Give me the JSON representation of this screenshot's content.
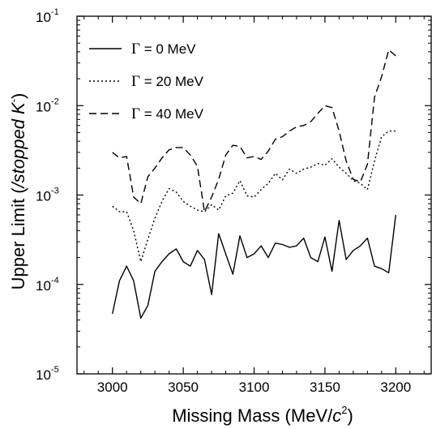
{
  "chart_data": {
    "type": "line",
    "title": "",
    "xlabel": {
      "prefix": "Missing Mass (MeV/",
      "var": "c",
      "sup": "2",
      "suffix": ")"
    },
    "ylabel": {
      "prefix": "Upper Limit  (",
      "italic": "/stopped K",
      "sup": "-",
      "suffix": ")"
    },
    "xlim": [
      2975,
      3225
    ],
    "ylim": [
      1e-05,
      0.1
    ],
    "yscale": "log",
    "grid": false,
    "legend_position": "top-left",
    "x_ticks": [
      "3000",
      "3050",
      "3100",
      "3150",
      "3200"
    ],
    "y_ticks": [
      {
        "base": "10",
        "exp": "-5"
      },
      {
        "base": "10",
        "exp": "-4"
      },
      {
        "base": "10",
        "exp": "-3"
      },
      {
        "base": "10",
        "exp": "-2"
      },
      {
        "base": "10",
        "exp": "-1"
      }
    ],
    "series": [
      {
        "name": {
          "symbol": "Γ",
          "text": " = 0 MeV"
        },
        "dash": "solid",
        "x": [
          3000,
          3005,
          3010,
          3015,
          3020,
          3025,
          3030,
          3035,
          3040,
          3045,
          3050,
          3055,
          3060,
          3065,
          3070,
          3075,
          3080,
          3085,
          3090,
          3095,
          3100,
          3105,
          3110,
          3115,
          3120,
          3125,
          3130,
          3135,
          3140,
          3145,
          3150,
          3155,
          3160,
          3165,
          3170,
          3175,
          3180,
          3185,
          3190,
          3195,
          3200
        ],
        "values": [
          4.7e-05,
          0.00011,
          0.00016,
          0.00011,
          4.2e-05,
          5.8e-05,
          0.00014,
          0.00018,
          0.00022,
          0.00025,
          0.00018,
          0.00016,
          0.00024,
          0.00019,
          7.7e-05,
          0.00037,
          0.00022,
          0.00013,
          0.00035,
          0.0002,
          0.00022,
          0.00027,
          0.0002,
          0.00029,
          0.00028,
          0.00026,
          0.00027,
          0.00033,
          0.0002,
          0.00018,
          0.00034,
          0.00014,
          0.00052,
          0.00019,
          0.00024,
          0.00027,
          0.00033,
          0.00016,
          0.00015,
          0.000135,
          0.0006
        ]
      },
      {
        "name": {
          "symbol": "Γ",
          "text": " = 20 MeV"
        },
        "dash": "dotted",
        "x": [
          3000,
          3005,
          3010,
          3015,
          3020,
          3025,
          3030,
          3035,
          3040,
          3045,
          3050,
          3055,
          3060,
          3065,
          3070,
          3075,
          3080,
          3085,
          3090,
          3095,
          3100,
          3105,
          3110,
          3115,
          3120,
          3125,
          3130,
          3135,
          3140,
          3145,
          3150,
          3155,
          3160,
          3165,
          3170,
          3175,
          3180,
          3185,
          3190,
          3195,
          3200
        ],
        "values": [
          0.00075,
          0.00065,
          0.00065,
          0.0004,
          0.00018,
          0.00032,
          0.00055,
          0.00085,
          0.00118,
          0.00108,
          0.00085,
          0.00075,
          0.00068,
          0.00065,
          0.00078,
          0.00068,
          0.00098,
          0.00105,
          0.00145,
          0.00098,
          0.00095,
          0.00115,
          0.00135,
          0.00175,
          0.00148,
          0.00195,
          0.00175,
          0.00195,
          0.00205,
          0.00225,
          0.00215,
          0.00255,
          0.00205,
          0.00175,
          0.00145,
          0.00135,
          0.00115,
          0.0024,
          0.0045,
          0.0052,
          0.0052
        ]
      },
      {
        "name": {
          "symbol": "Γ",
          "text": " = 40 MeV"
        },
        "dash": "dashed",
        "x": [
          3000,
          3005,
          3010,
          3015,
          3020,
          3025,
          3030,
          3035,
          3040,
          3045,
          3050,
          3055,
          3060,
          3065,
          3070,
          3075,
          3080,
          3085,
          3090,
          3095,
          3100,
          3105,
          3110,
          3115,
          3120,
          3125,
          3130,
          3135,
          3140,
          3145,
          3150,
          3155,
          3160,
          3165,
          3170,
          3175,
          3180,
          3185,
          3190,
          3195,
          3200
        ],
        "values": [
          0.003,
          0.0026,
          0.0027,
          0.00095,
          0.0008,
          0.0016,
          0.002,
          0.0026,
          0.0032,
          0.0034,
          0.0034,
          0.0028,
          0.0021,
          0.00065,
          0.00095,
          0.0015,
          0.0028,
          0.0036,
          0.0035,
          0.0026,
          0.0027,
          0.0025,
          0.0031,
          0.0042,
          0.0045,
          0.0052,
          0.0058,
          0.006,
          0.0066,
          0.0082,
          0.01,
          0.0095,
          0.0052,
          0.0024,
          0.0015,
          0.0014,
          0.0022,
          0.0125,
          0.021,
          0.042,
          0.036
        ]
      }
    ]
  }
}
